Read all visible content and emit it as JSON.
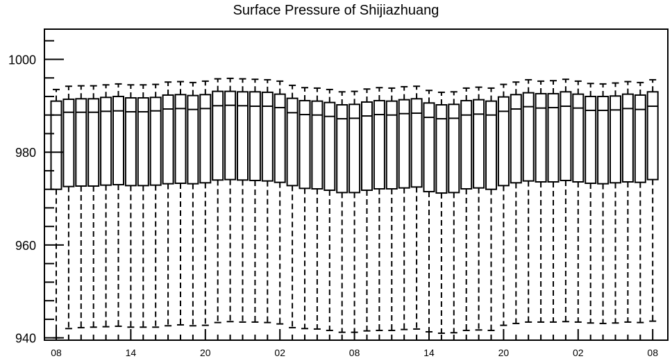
{
  "chart_data": {
    "type": "box",
    "title": "Surface Pressure of Shijiazhuang",
    "xlabel": "",
    "ylabel": "",
    "ylim": [
      939.5,
      1006.5
    ],
    "y_ticks": [
      940,
      960,
      980,
      1000
    ],
    "x_tick_labels": [
      "08",
      "14",
      "20",
      "02",
      "08",
      "14",
      "20",
      "02",
      "08"
    ],
    "x_tick_positions": [
      1,
      7,
      13,
      19,
      25,
      31,
      37,
      43,
      49
    ],
    "series": [
      {
        "x": 1,
        "whislo": 940.0,
        "q1": 972.0,
        "med": 988.0,
        "q3": 991.0,
        "whishi": 993.5
      },
      {
        "x": 2,
        "whislo": 942.0,
        "q1": 972.6,
        "med": 988.6,
        "q3": 991.4,
        "whishi": 994.2
      },
      {
        "x": 3,
        "whislo": 942.2,
        "q1": 972.7,
        "med": 988.6,
        "q3": 991.5,
        "whishi": 994.3
      },
      {
        "x": 4,
        "whislo": 942.3,
        "q1": 972.7,
        "med": 988.6,
        "q3": 991.5,
        "whishi": 994.3
      },
      {
        "x": 5,
        "whislo": 942.4,
        "q1": 972.9,
        "med": 988.8,
        "q3": 991.8,
        "whishi": 994.5
      },
      {
        "x": 6,
        "whislo": 942.5,
        "q1": 973.0,
        "med": 988.9,
        "q3": 992.0,
        "whishi": 994.7
      },
      {
        "x": 7,
        "whislo": 942.3,
        "q1": 972.8,
        "med": 988.7,
        "q3": 991.7,
        "whishi": 994.5
      },
      {
        "x": 8,
        "whislo": 942.3,
        "q1": 972.8,
        "med": 988.7,
        "q3": 991.7,
        "whishi": 994.5
      },
      {
        "x": 9,
        "whislo": 942.3,
        "q1": 972.9,
        "med": 988.9,
        "q3": 991.8,
        "whishi": 994.6
      },
      {
        "x": 10,
        "whislo": 942.6,
        "q1": 973.2,
        "med": 989.3,
        "q3": 992.3,
        "whishi": 995.1
      },
      {
        "x": 11,
        "whislo": 942.8,
        "q1": 973.3,
        "med": 989.4,
        "q3": 992.4,
        "whishi": 995.2
      },
      {
        "x": 12,
        "whislo": 942.6,
        "q1": 973.2,
        "med": 989.2,
        "q3": 992.2,
        "whishi": 995.0
      },
      {
        "x": 13,
        "whislo": 942.7,
        "q1": 973.4,
        "med": 989.4,
        "q3": 992.4,
        "whishi": 995.3
      },
      {
        "x": 14,
        "whislo": 943.3,
        "q1": 974.0,
        "med": 990.0,
        "q3": 993.1,
        "whishi": 995.8
      },
      {
        "x": 15,
        "whislo": 943.5,
        "q1": 974.1,
        "med": 990.1,
        "q3": 993.1,
        "whishi": 995.9
      },
      {
        "x": 16,
        "whislo": 943.4,
        "q1": 974.0,
        "med": 990.0,
        "q3": 993.0,
        "whishi": 995.8
      },
      {
        "x": 17,
        "whislo": 943.4,
        "q1": 973.9,
        "med": 989.9,
        "q3": 993.0,
        "whishi": 995.7
      },
      {
        "x": 18,
        "whislo": 943.3,
        "q1": 973.8,
        "med": 989.9,
        "q3": 992.9,
        "whishi": 995.6
      },
      {
        "x": 19,
        "whislo": 943.0,
        "q1": 973.5,
        "med": 989.6,
        "q3": 992.5,
        "whishi": 995.3
      },
      {
        "x": 20,
        "whislo": 942.2,
        "q1": 972.8,
        "med": 988.5,
        "q3": 991.6,
        "whishi": 994.4
      },
      {
        "x": 21,
        "whislo": 942.0,
        "q1": 972.2,
        "med": 988.1,
        "q3": 991.1,
        "whishi": 993.9
      },
      {
        "x": 22,
        "whislo": 941.9,
        "q1": 972.1,
        "med": 988.0,
        "q3": 991.0,
        "whishi": 993.8
      },
      {
        "x": 23,
        "whislo": 941.6,
        "q1": 971.8,
        "med": 987.7,
        "q3": 990.7,
        "whishi": 993.5
      },
      {
        "x": 24,
        "whislo": 941.2,
        "q1": 971.3,
        "med": 987.2,
        "q3": 990.2,
        "whishi": 993.0
      },
      {
        "x": 25,
        "whislo": 941.2,
        "q1": 971.3,
        "med": 987.3,
        "q3": 990.3,
        "whishi": 993.1
      },
      {
        "x": 26,
        "whislo": 941.5,
        "q1": 971.8,
        "med": 987.8,
        "q3": 990.8,
        "whishi": 993.6
      },
      {
        "x": 27,
        "whislo": 941.6,
        "q1": 972.1,
        "med": 988.1,
        "q3": 991.1,
        "whishi": 993.9
      },
      {
        "x": 28,
        "whislo": 941.6,
        "q1": 972.1,
        "med": 988.0,
        "q3": 991.0,
        "whishi": 993.8
      },
      {
        "x": 29,
        "whislo": 941.8,
        "q1": 972.3,
        "med": 988.3,
        "q3": 991.3,
        "whishi": 994.1
      },
      {
        "x": 30,
        "whislo": 941.9,
        "q1": 972.5,
        "med": 988.4,
        "q3": 991.5,
        "whishi": 994.2
      },
      {
        "x": 31,
        "whislo": 941.3,
        "q1": 971.5,
        "med": 987.5,
        "q3": 990.6,
        "whishi": 993.3
      },
      {
        "x": 32,
        "whislo": 941.0,
        "q1": 971.2,
        "med": 987.2,
        "q3": 990.2,
        "whishi": 992.9
      },
      {
        "x": 33,
        "whislo": 941.1,
        "q1": 971.3,
        "med": 987.3,
        "q3": 990.3,
        "whishi": 993.0
      },
      {
        "x": 34,
        "whislo": 941.6,
        "q1": 972.1,
        "med": 988.0,
        "q3": 991.1,
        "whishi": 993.8
      },
      {
        "x": 35,
        "whislo": 941.7,
        "q1": 972.3,
        "med": 988.2,
        "q3": 991.3,
        "whishi": 994.0
      },
      {
        "x": 36,
        "whislo": 941.6,
        "q1": 972.0,
        "med": 988.0,
        "q3": 991.0,
        "whishi": 993.8
      },
      {
        "x": 37,
        "whislo": 942.7,
        "q1": 972.8,
        "med": 988.8,
        "q3": 991.9,
        "whishi": 994.6
      },
      {
        "x": 38,
        "whislo": 943.1,
        "q1": 973.4,
        "med": 989.3,
        "q3": 992.4,
        "whishi": 995.1
      },
      {
        "x": 39,
        "whislo": 943.4,
        "q1": 973.8,
        "med": 989.8,
        "q3": 992.8,
        "whishi": 995.6
      },
      {
        "x": 40,
        "whislo": 943.4,
        "q1": 973.6,
        "med": 989.5,
        "q3": 992.6,
        "whishi": 995.3
      },
      {
        "x": 41,
        "whislo": 943.4,
        "q1": 973.6,
        "med": 989.6,
        "q3": 992.6,
        "whishi": 995.4
      },
      {
        "x": 42,
        "whislo": 943.5,
        "q1": 973.9,
        "med": 989.9,
        "q3": 993.0,
        "whishi": 995.7
      },
      {
        "x": 43,
        "whislo": 943.4,
        "q1": 973.6,
        "med": 989.5,
        "q3": 992.5,
        "whishi": 995.3
      },
      {
        "x": 44,
        "whislo": 943.2,
        "q1": 973.3,
        "med": 989.0,
        "q3": 992.0,
        "whishi": 994.8
      },
      {
        "x": 45,
        "whislo": 943.1,
        "q1": 973.2,
        "med": 989.0,
        "q3": 992.0,
        "whishi": 994.7
      },
      {
        "x": 46,
        "whislo": 943.2,
        "q1": 973.4,
        "med": 989.1,
        "q3": 992.1,
        "whishi": 994.9
      },
      {
        "x": 47,
        "whislo": 943.4,
        "q1": 973.6,
        "med": 989.4,
        "q3": 992.5,
        "whishi": 995.2
      },
      {
        "x": 48,
        "whislo": 943.3,
        "q1": 973.5,
        "med": 989.2,
        "q3": 992.3,
        "whishi": 995.0
      },
      {
        "x": 49,
        "whislo": 943.6,
        "q1": 974.1,
        "med": 989.9,
        "q3": 993.0,
        "whishi": 995.6
      }
    ]
  }
}
